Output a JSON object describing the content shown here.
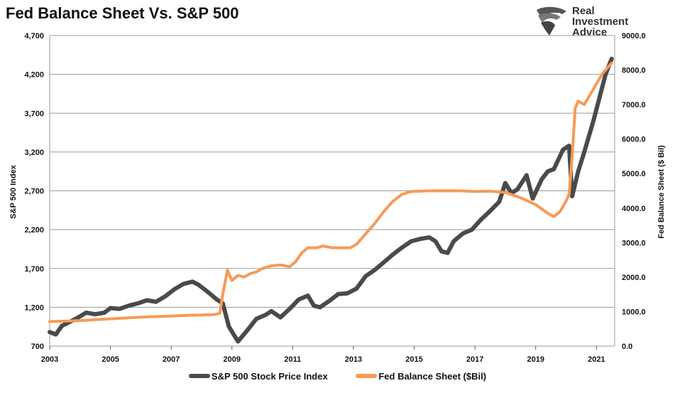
{
  "chart_data": {
    "type": "line",
    "title": "Fed Balance Sheet Vs. S&P 500",
    "ylabel_left": "S&P 500 Index",
    "ylabel_right": "Fed Balance Sheet ($ Bil)",
    "ylim_left": [
      700,
      4700
    ],
    "ylim_right": [
      0,
      9000
    ],
    "xlim": [
      2003,
      2021.6
    ],
    "yticks_left": [
      "700",
      "1,200",
      "1,700",
      "2,200",
      "2,700",
      "3,200",
      "3,700",
      "4,200",
      "4,700"
    ],
    "yticks_left_values": [
      700,
      1200,
      1700,
      2200,
      2700,
      3200,
      3700,
      4200,
      4700
    ],
    "yticks_right": [
      "0.0",
      "1000.0",
      "2000.0",
      "3000.0",
      "4000.0",
      "5000.0",
      "6000.0",
      "7000.0",
      "8000.0",
      "9000.0"
    ],
    "yticks_right_values": [
      0,
      1000,
      2000,
      3000,
      4000,
      5000,
      6000,
      7000,
      8000,
      9000
    ],
    "xticks": [
      "2003",
      "2005",
      "2007",
      "2009",
      "2011",
      "2013",
      "2015",
      "2017",
      "2019",
      "2021"
    ],
    "xticks_values": [
      2003,
      2005,
      2007,
      2009,
      2011,
      2013,
      2015,
      2017,
      2019,
      2021
    ],
    "grid": true,
    "series": [
      {
        "name": "S&P 500 Stock Price Index",
        "axis": "left",
        "color": "#4a4a4a",
        "x": [
          2003.0,
          2003.2,
          2003.4,
          2003.6,
          2003.9,
          2004.2,
          2004.5,
          2004.8,
          2005.0,
          2005.3,
          2005.6,
          2005.9,
          2006.2,
          2006.5,
          2006.8,
          2007.1,
          2007.4,
          2007.7,
          2007.9,
          2008.2,
          2008.5,
          2008.7,
          2008.9,
          2009.2,
          2009.5,
          2009.8,
          2010.1,
          2010.3,
          2010.6,
          2010.9,
          2011.2,
          2011.5,
          2011.7,
          2011.9,
          2012.2,
          2012.5,
          2012.8,
          2013.1,
          2013.4,
          2013.7,
          2014.0,
          2014.3,
          2014.6,
          2014.9,
          2015.2,
          2015.5,
          2015.7,
          2015.9,
          2016.1,
          2016.3,
          2016.6,
          2016.9,
          2017.2,
          2017.5,
          2017.8,
          2018.0,
          2018.2,
          2018.4,
          2018.7,
          2018.9,
          2019.2,
          2019.4,
          2019.6,
          2019.9,
          2020.1,
          2020.2,
          2020.4,
          2020.6,
          2020.9,
          2021.1,
          2021.3,
          2021.5
        ],
        "values": [
          880,
          850,
          960,
          1000,
          1060,
          1130,
          1110,
          1130,
          1190,
          1180,
          1220,
          1250,
          1290,
          1270,
          1340,
          1430,
          1500,
          1530,
          1490,
          1400,
          1300,
          1250,
          950,
          760,
          900,
          1050,
          1100,
          1150,
          1070,
          1180,
          1300,
          1350,
          1220,
          1200,
          1280,
          1370,
          1380,
          1440,
          1600,
          1680,
          1780,
          1880,
          1970,
          2050,
          2080,
          2100,
          2050,
          1920,
          1900,
          2050,
          2150,
          2200,
          2330,
          2440,
          2560,
          2800,
          2670,
          2720,
          2900,
          2600,
          2850,
          2950,
          2980,
          3230,
          3280,
          2630,
          2950,
          3200,
          3600,
          3900,
          4200,
          4400
        ]
      },
      {
        "name": "Fed Balance Sheet ($Bil)",
        "axis": "right",
        "color": "#f79a55",
        "x": [
          2003.0,
          2004.0,
          2005.0,
          2006.0,
          2007.0,
          2007.5,
          2008.0,
          2008.4,
          2008.6,
          2008.7,
          2008.85,
          2009.0,
          2009.2,
          2009.4,
          2009.6,
          2009.8,
          2010.0,
          2010.3,
          2010.6,
          2010.9,
          2011.1,
          2011.3,
          2011.5,
          2011.8,
          2012.0,
          2012.3,
          2012.6,
          2012.9,
          2013.1,
          2013.4,
          2013.7,
          2014.0,
          2014.3,
          2014.6,
          2014.9,
          2015.5,
          2016.0,
          2016.5,
          2017.0,
          2017.5,
          2018.0,
          2018.5,
          2019.0,
          2019.4,
          2019.6,
          2019.8,
          2020.0,
          2020.1,
          2020.2,
          2020.3,
          2020.4,
          2020.6,
          2020.8,
          2021.0,
          2021.2,
          2021.5
        ],
        "values": [
          710,
          740,
          790,
          840,
          870,
          890,
          900,
          910,
          950,
          1500,
          2200,
          1900,
          2050,
          2000,
          2100,
          2150,
          2250,
          2330,
          2350,
          2300,
          2450,
          2700,
          2850,
          2850,
          2900,
          2850,
          2850,
          2850,
          2950,
          3250,
          3550,
          3900,
          4200,
          4400,
          4480,
          4500,
          4500,
          4500,
          4480,
          4490,
          4450,
          4300,
          4100,
          3850,
          3750,
          3900,
          4200,
          4400,
          5500,
          6900,
          7100,
          7000,
          7300,
          7600,
          7900,
          8200
        ]
      }
    ]
  },
  "header": {
    "title": "Fed Balance Sheet Vs. S&P 500"
  },
  "logo": {
    "line1": "Real",
    "line2": "Investment",
    "line3": "Advice"
  },
  "legend": {
    "items": [
      {
        "label": "S&P 500 Stock Price Index",
        "color": "#4a4a4a"
      },
      {
        "label": "Fed Balance Sheet ($Bil)",
        "color": "#f79a55"
      }
    ]
  }
}
